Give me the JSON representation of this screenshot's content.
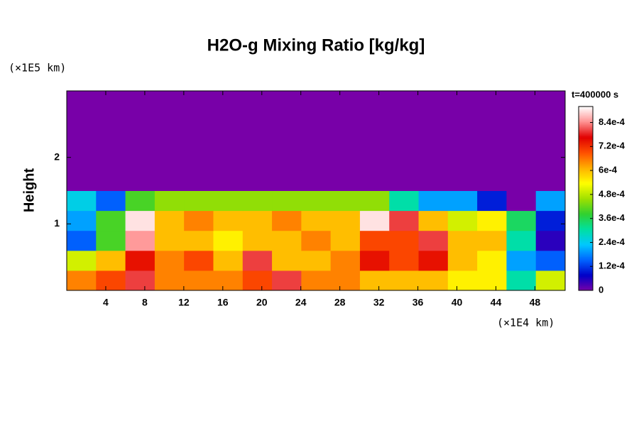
{
  "chart_data": {
    "type": "heatmap",
    "title": "H2O-g Mixing Ratio [kg/kg]",
    "y_unit_label": "(×1E5 km)",
    "x_unit_label": "(×1E4 km)",
    "y_label": "Height",
    "annotation": "t=400000 s",
    "xlim": [
      0,
      51.1
    ],
    "ylim": [
      0,
      3
    ],
    "xticks": [
      4,
      8,
      12,
      16,
      20,
      24,
      28,
      32,
      36,
      40,
      44,
      48
    ],
    "yticks": [
      1,
      2
    ],
    "clim": [
      0,
      0.00092
    ],
    "cticks": [
      0,
      {
        "value": 0.00012,
        "label": "1.2e-4"
      },
      {
        "value": 0.00024,
        "label": "2.4e-4"
      },
      {
        "value": 0.00036,
        "label": "3.6e-4"
      },
      {
        "value": 0.00048,
        "label": "4.8e-4"
      },
      {
        "value": 0.0006,
        "label": "6e-4"
      },
      {
        "value": 0.00072,
        "label": "7.2e-4"
      },
      {
        "value": 0.00084,
        "label": "8.4e-4"
      }
    ],
    "colormap": [
      "#7800a8",
      "#0000c8",
      "#0064ff",
      "#00c8ff",
      "#00e0a0",
      "#30d030",
      "#a0e000",
      "#ffff00",
      "#ffb000",
      "#ff5000",
      "#e00000",
      "#ff9090",
      "#ffffff"
    ],
    "background": "#7800a8",
    "z": [
      [
        0.00065,
        0.0007,
        0.0008,
        0.00065,
        0.00065,
        0.00065,
        0.0007,
        0.0008,
        0.00065,
        0.00065,
        0.0006,
        0.0006,
        0.0006,
        0.00055,
        0.00055,
        0.0003,
        0.0005
      ],
      [
        0.0005,
        0.0006,
        0.00075,
        0.00065,
        0.0007,
        0.0006,
        0.0008,
        0.0006,
        0.0006,
        0.00065,
        0.00075,
        0.0007,
        0.00075,
        0.0006,
        0.00055,
        0.0002,
        0.00015
      ],
      [
        0.00015,
        0.0004,
        0.00085,
        0.0006,
        0.0006,
        0.00055,
        0.0006,
        0.0006,
        0.00065,
        0.0006,
        0.0007,
        0.0007,
        0.0008,
        0.0006,
        0.0006,
        0.0003,
        5e-05
      ],
      [
        0.0002,
        0.0004,
        0.0009,
        0.0006,
        0.00065,
        0.0006,
        0.0006,
        0.00065,
        0.0006,
        0.0006,
        0.0009,
        0.0008,
        0.0006,
        0.0005,
        0.00055,
        0.00035,
        0.0001
      ],
      [
        0.00025,
        0.00015,
        0.0004,
        0.00045,
        0.00045,
        0.00045,
        0.00045,
        0.00045,
        0.00045,
        0.00045,
        0.00045,
        0.0003,
        0.0002,
        0.0002,
        0.0001,
        0,
        0.0002
      ],
      [
        0,
        0,
        0,
        0,
        0,
        0,
        0,
        0,
        0,
        0,
        0,
        0,
        0,
        0,
        0,
        0,
        0
      ],
      [
        0,
        0,
        0,
        0,
        0,
        0,
        0,
        0,
        0,
        0,
        0,
        0,
        0,
        0,
        0,
        0,
        0
      ],
      [
        0,
        0,
        0,
        0,
        0,
        0,
        0,
        0,
        0,
        0,
        0,
        0,
        0,
        0,
        0,
        0,
        0
      ],
      [
        0,
        0,
        0,
        0,
        0,
        0,
        0,
        0,
        0,
        0,
        0,
        0,
        0,
        0,
        0,
        0,
        0
      ],
      [
        0,
        0,
        0,
        0,
        0,
        0,
        0,
        0,
        0,
        0,
        0,
        0,
        0,
        0,
        0,
        0,
        0
      ]
    ]
  }
}
